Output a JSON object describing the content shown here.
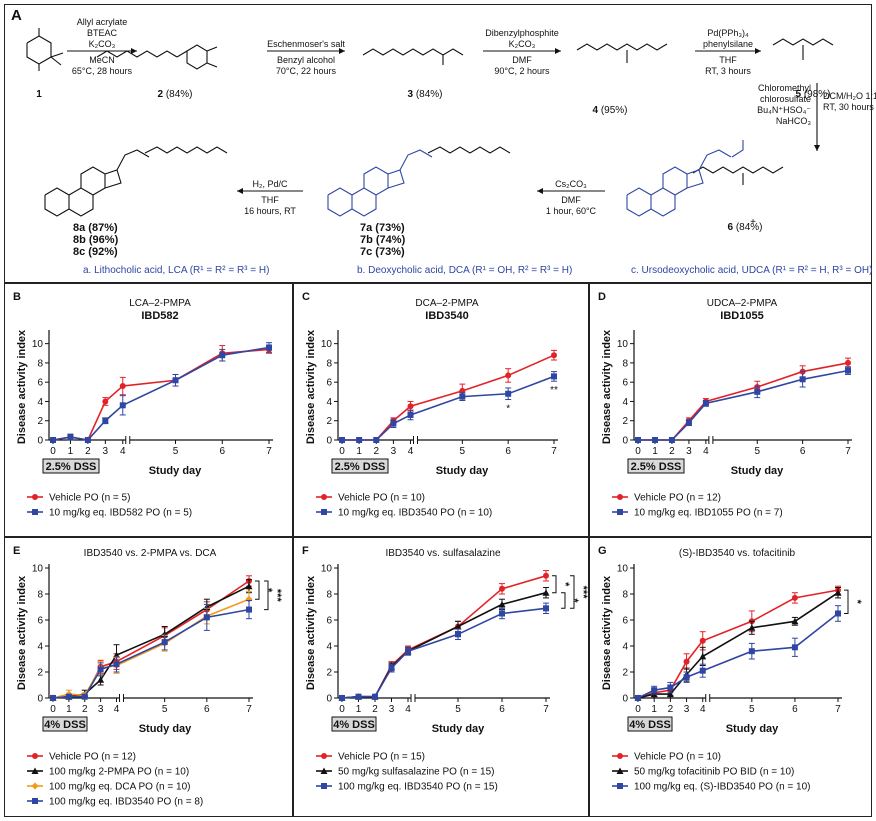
{
  "panel_a": {
    "label": "A",
    "compounds": [
      {
        "id": "1",
        "label": "1",
        "yield": ""
      },
      {
        "id": "2",
        "label": "2",
        "yield": " (84%)"
      },
      {
        "id": "3",
        "label": "3",
        "yield": " (84%)"
      },
      {
        "id": "4",
        "label": "4",
        "yield": " (95%)"
      },
      {
        "id": "5",
        "label": "5",
        "yield": " (98%)"
      },
      {
        "id": "6",
        "label": "6",
        "yield": " (84%)"
      }
    ],
    "products_7": [
      "7a (73%)",
      "7b (74%)",
      "7c (73%)"
    ],
    "products_8": [
      "8a (87%)",
      "8b (96%)",
      "8c (92%)"
    ],
    "steps": [
      {
        "above": [
          "Allyl acrylate",
          "BTEAC",
          "K₂CO₃"
        ],
        "below": [
          "MeCN",
          "65°C, 28 hours"
        ]
      },
      {
        "above": [
          "Eschenmoser's salt"
        ],
        "below": [
          "Benzyl alcohol",
          "70°C, 22 hours"
        ]
      },
      {
        "above": [
          "Dibenzylphosphite",
          "K₂CO₃"
        ],
        "below": [
          "DMF",
          "90°C, 2 hours"
        ]
      },
      {
        "above": [
          "Pd(PPh₃)₄",
          "phenylsilane"
        ],
        "below": [
          "THF",
          "RT, 3 hours"
        ]
      },
      {
        "left": [
          "Chloromethyl",
          "chlorosulfate",
          "Bu₄N⁺HSO₄⁻",
          "NaHCO₃"
        ],
        "right": [
          "DCM/H₂O 1:1",
          "RT, 30 hours"
        ]
      },
      {
        "above": [
          "Cs₂CO₃"
        ],
        "below": [
          "DMF",
          "1 hour, 60°C"
        ]
      },
      {
        "above": [
          "H₂, Pd/C"
        ],
        "below": [
          "THF",
          "16 hours, RT"
        ]
      }
    ],
    "plus": "+",
    "footnotes": [
      "a. Lithocholic acid, LCA (R¹ = R² = R³ = H)",
      "b. Deoxycholic acid, DCA (R¹ = OH, R² = R³ = H)",
      "c. Ursodeoxycholic acid, UDCA (R¹ = R² = H, R³ = OH)"
    ]
  },
  "colors": {
    "red": "#e32227",
    "blue": "#2f46a3",
    "black": "#111111",
    "orange": "#f39a1c",
    "grey": "#888888"
  },
  "shared": {
    "xlabel": "Study day",
    "ylabel": "Disease activity index",
    "xticks": [
      "0",
      "1",
      "2",
      "3",
      "4",
      "5",
      "6",
      "7"
    ],
    "yticks": [
      "0",
      "2",
      "4",
      "6",
      "8",
      "10"
    ]
  },
  "chart_data": [
    {
      "panel": "B",
      "type": "line",
      "title": "LCA–2-PMPA",
      "subtitle": "IBD582",
      "dss": "2.5% DSS",
      "xlabel": "Study day",
      "ylabel": "Disease activity index",
      "ylim": [
        0,
        11
      ],
      "x": [
        0,
        1,
        2,
        3,
        4,
        5,
        6,
        7
      ],
      "series": [
        {
          "name": "Vehicle PO (n = 5)",
          "color": "red",
          "marker": "circle",
          "y": [
            0,
            0.3,
            0,
            4,
            5.6,
            6.2,
            9,
            9.4
          ],
          "err": [
            0,
            0.3,
            0,
            0.4,
            0.9,
            0.6,
            0.8,
            0.4
          ]
        },
        {
          "name": "10 mg/kg eq. IBD582 PO (n = 5)",
          "color": "blue",
          "marker": "square",
          "y": [
            0,
            0.3,
            0,
            2,
            3.6,
            6.2,
            8.8,
            9.6
          ],
          "err": [
            0,
            0.3,
            0,
            0.3,
            1.0,
            0.6,
            0.6,
            0.5
          ]
        }
      ],
      "annotations": []
    },
    {
      "panel": "C",
      "type": "line",
      "title": "DCA–2-PMPA",
      "subtitle": "IBD3540",
      "dss": "2.5% DSS",
      "xlabel": "Study day",
      "ylabel": "Disease activity index",
      "ylim": [
        0,
        11
      ],
      "x": [
        0,
        1,
        2,
        3,
        4,
        5,
        6,
        7
      ],
      "series": [
        {
          "name": "Vehicle PO (n = 10)",
          "color": "red",
          "marker": "circle",
          "y": [
            0,
            0,
            0,
            2,
            3.5,
            5.1,
            6.7,
            8.8
          ],
          "err": [
            0,
            0,
            0,
            0.3,
            0.5,
            0.7,
            0.7,
            0.5
          ]
        },
        {
          "name": "10 mg/kg eq. IBD3540 PO (n = 10)",
          "color": "blue",
          "marker": "square",
          "y": [
            0,
            0,
            0,
            1.7,
            2.6,
            4.5,
            4.8,
            6.6
          ],
          "err": [
            0,
            0,
            0,
            0.4,
            0.5,
            0.4,
            0.6,
            0.5
          ]
        }
      ],
      "annotations": [
        {
          "text": "*",
          "x": 6
        },
        {
          "text": "**",
          "x": 7
        }
      ]
    },
    {
      "panel": "D",
      "type": "line",
      "title": "UDCA–2-PMPA",
      "subtitle": "IBD1055",
      "dss": "2.5% DSS",
      "xlabel": "Study day",
      "ylabel": "Disease activity index",
      "ylim": [
        0,
        11
      ],
      "x": [
        0,
        1,
        2,
        3,
        4,
        5,
        6,
        7
      ],
      "series": [
        {
          "name": "Vehicle PO (n = 12)",
          "color": "red",
          "marker": "circle",
          "y": [
            0,
            0,
            0,
            2,
            4,
            5.5,
            7.1,
            8
          ],
          "err": [
            0,
            0,
            0,
            0.3,
            0.3,
            0.6,
            0.6,
            0.5
          ]
        },
        {
          "name": "10 mg/kg eq. IBD1055 PO (n = 7)",
          "color": "blue",
          "marker": "square",
          "y": [
            0,
            0,
            0,
            1.8,
            3.8,
            5,
            6.3,
            7.2
          ],
          "err": [
            0,
            0,
            0,
            0.3,
            0.3,
            0.6,
            0.8,
            0.4
          ]
        }
      ],
      "annotations": []
    },
    {
      "panel": "E",
      "type": "line",
      "title": "IBD3540 vs. 2-PMPA vs. DCA",
      "subtitle": "",
      "dss": "4% DSS",
      "xlabel": "Study day",
      "ylabel": "Disease activity index",
      "ylim": [
        0,
        10
      ],
      "x": [
        0,
        1,
        2,
        3,
        4,
        5,
        6,
        7
      ],
      "series": [
        {
          "name": "Vehicle PO (n = 12)",
          "color": "red",
          "marker": "circle",
          "y": [
            0,
            0.1,
            0.1,
            2.4,
            2.8,
            4.8,
            6.8,
            9
          ],
          "err": [
            0,
            0.1,
            0.1,
            0.5,
            0.6,
            0.6,
            0.6,
            0.4
          ]
        },
        {
          "name": "100 mg/kg 2-PMPA PO (n = 10)",
          "color": "black",
          "marker": "triangle",
          "y": [
            0,
            0.1,
            0.3,
            1.4,
            3.3,
            4.9,
            7,
            8.6
          ],
          "err": [
            0,
            0.1,
            0.3,
            0.4,
            0.8,
            0.6,
            0.6,
            0.5
          ]
        },
        {
          "name": "100 mg/kg eq. DCA PO (n = 10)",
          "color": "orange",
          "marker": "diamond",
          "y": [
            0,
            0.3,
            0.2,
            2.3,
            2.5,
            4.2,
            6.3,
            7.6
          ],
          "err": [
            0,
            0.3,
            0.2,
            0.5,
            0.6,
            0.6,
            0.6,
            0.6
          ]
        },
        {
          "name": "100 mg/kg eq. IBD3540 PO (n = 8)",
          "color": "blue",
          "marker": "square",
          "y": [
            0,
            0.1,
            0.1,
            2.2,
            2.6,
            4.3,
            6.2,
            6.8
          ],
          "err": [
            0,
            0.1,
            0.1,
            0.5,
            0.6,
            0.6,
            1,
            0.7
          ]
        }
      ],
      "brackets": [
        {
          "labels": [
            "*"
          ],
          "from": 9,
          "to": 7.6
        },
        {
          "labels": [
            "***"
          ],
          "from": 9,
          "to": 6.8
        }
      ]
    },
    {
      "panel": "F",
      "type": "line",
      "title": "IBD3540 vs. sulfasalazine",
      "subtitle": "",
      "dss": "4% DSS",
      "xlabel": "Study day",
      "ylabel": "Disease activity index",
      "ylim": [
        0,
        10
      ],
      "x": [
        0,
        1,
        2,
        3,
        4,
        5,
        6,
        7
      ],
      "series": [
        {
          "name": "Vehicle PO (n = 15)",
          "color": "red",
          "marker": "circle",
          "y": [
            0,
            0.1,
            0.1,
            2.5,
            3.7,
            5.5,
            8.4,
            9.4
          ],
          "err": [
            0,
            0.1,
            0.1,
            0.3,
            0.3,
            0.4,
            0.4,
            0.4
          ]
        },
        {
          "name": "50 mg/kg sulfasalazine PO (n = 15)",
          "color": "black",
          "marker": "triangle",
          "y": [
            0,
            0.1,
            0.1,
            2.4,
            3.6,
            5.5,
            7.2,
            8.1
          ],
          "err": [
            0,
            0.1,
            0.1,
            0.3,
            0.3,
            0.4,
            0.4,
            0.4
          ]
        },
        {
          "name": "100 mg/kg eq. IBD3540 PO (n = 15)",
          "color": "blue",
          "marker": "square",
          "y": [
            0,
            0.1,
            0.1,
            2.3,
            3.6,
            4.9,
            6.5,
            6.9
          ],
          "err": [
            0,
            0.1,
            0.1,
            0.3,
            0.3,
            0.4,
            0.4,
            0.4
          ]
        }
      ],
      "brackets": [
        {
          "labels": [
            "*"
          ],
          "from": 9.4,
          "to": 8.1
        },
        {
          "labels": [
            "*"
          ],
          "from": 8.1,
          "to": 6.9
        },
        {
          "labels": [
            "***"
          ],
          "from": 9.4,
          "to": 6.9
        }
      ]
    },
    {
      "panel": "G",
      "type": "line",
      "title": "(S)-IBD3540 vs. tofacitinib",
      "subtitle": "",
      "dss": "4% DSS",
      "xlabel": "Study day",
      "ylabel": "Disease activity index",
      "ylim": [
        0,
        10
      ],
      "x": [
        0,
        1,
        2,
        3,
        4,
        5,
        6,
        7
      ],
      "series": [
        {
          "name": "Vehicle PO (n = 10)",
          "color": "red",
          "marker": "circle",
          "y": [
            0,
            0.4,
            0.6,
            2.8,
            4.4,
            5.9,
            7.7,
            8.3
          ],
          "err": [
            0,
            0.3,
            0.4,
            0.6,
            0.7,
            0.8,
            0.4,
            0.3
          ]
        },
        {
          "name": "50 mg/kg tofacitinib PO BID (n = 10)",
          "color": "black",
          "marker": "triangle",
          "y": [
            0,
            0.3,
            0.3,
            1.8,
            3.2,
            5.4,
            5.9,
            8.1
          ],
          "err": [
            0,
            0.3,
            0.3,
            0.5,
            0.7,
            0.5,
            0.3,
            0.4
          ]
        },
        {
          "name": "100 mg/kg eq. (S)-IBD3540 PO (n = 10)",
          "color": "blue",
          "marker": "square",
          "y": [
            0,
            0.6,
            0.8,
            1.6,
            2.1,
            3.6,
            3.9,
            6.5
          ],
          "err": [
            0,
            0.3,
            0.4,
            0.4,
            0.5,
            0.6,
            0.7,
            0.6
          ]
        }
      ],
      "brackets": [
        {
          "labels": [
            "*"
          ],
          "from": 8.3,
          "to": 6.5
        }
      ]
    }
  ]
}
